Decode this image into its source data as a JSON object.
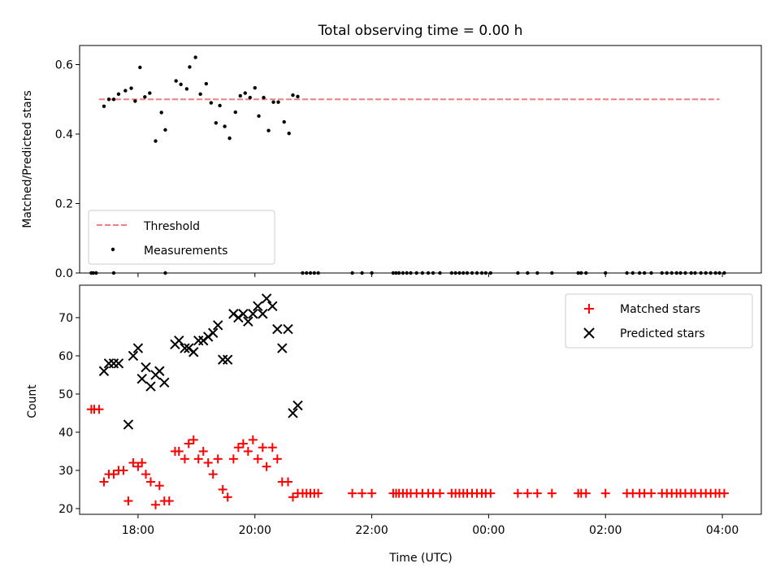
{
  "chart_data": [
    {
      "type": "scatter",
      "title": "Total observing time = 0.00 h",
      "xlabel": "",
      "ylabel": "Matched/Predicted stars",
      "xlim": [
        "17:00",
        "04:40"
      ],
      "ylim": [
        0,
        0.655
      ],
      "yticks": [
        "0.0",
        "0.2",
        "0.4",
        "0.6"
      ],
      "legend_position": "lower-left",
      "threshold": {
        "name": "Threshold",
        "value": 0.5,
        "x_range": [
          "17:20",
          "03:57"
        ],
        "color": "#f08080",
        "style": "dashed"
      },
      "series": [
        {
          "name": "Measurements",
          "color": "#000000",
          "marker": "dot",
          "points": [
            [
              "17:12",
              0.0
            ],
            [
              "17:14",
              0.0
            ],
            [
              "17:17",
              0.0
            ],
            [
              "17:35",
              0.0
            ],
            [
              "18:28",
              0.0
            ],
            [
              "17:25",
              0.48
            ],
            [
              "17:30",
              0.5
            ],
            [
              "17:35",
              0.5
            ],
            [
              "17:40",
              0.515
            ],
            [
              "17:47",
              0.525
            ],
            [
              "17:53",
              0.532
            ],
            [
              "17:57",
              0.495
            ],
            [
              "18:02",
              0.592
            ],
            [
              "18:07",
              0.507
            ],
            [
              "18:12",
              0.518
            ],
            [
              "18:18",
              0.38
            ],
            [
              "18:24",
              0.462
            ],
            [
              "18:28",
              0.412
            ],
            [
              "18:39",
              0.553
            ],
            [
              "18:44",
              0.543
            ],
            [
              "18:50",
              0.53
            ],
            [
              "18:53",
              0.593
            ],
            [
              "18:59",
              0.621
            ],
            [
              "19:04",
              0.515
            ],
            [
              "19:10",
              0.545
            ],
            [
              "19:15",
              0.49
            ],
            [
              "19:20",
              0.432
            ],
            [
              "19:24",
              0.482
            ],
            [
              "19:29",
              0.422
            ],
            [
              "19:34",
              0.388
            ],
            [
              "19:40",
              0.463
            ],
            [
              "19:45",
              0.51
            ],
            [
              "19:50",
              0.518
            ],
            [
              "19:55",
              0.505
            ],
            [
              "20:00",
              0.533
            ],
            [
              "20:04",
              0.452
            ],
            [
              "20:09",
              0.505
            ],
            [
              "20:14",
              0.41
            ],
            [
              "20:19",
              0.492
            ],
            [
              "20:24",
              0.492
            ],
            [
              "20:30",
              0.435
            ],
            [
              "20:35",
              0.402
            ],
            [
              "20:39",
              0.512
            ],
            [
              "20:44",
              0.508
            ],
            [
              "20:49",
              0.0
            ],
            [
              "20:53",
              0.0
            ],
            [
              "20:57",
              0.0
            ],
            [
              "21:01",
              0.0
            ],
            [
              "21:05",
              0.0
            ],
            [
              "21:40",
              0.0
            ],
            [
              "21:50",
              0.0
            ],
            [
              "22:00",
              0.0
            ],
            [
              "22:22",
              0.0
            ],
            [
              "22:25",
              0.0
            ],
            [
              "22:28",
              0.0
            ],
            [
              "22:32",
              0.0
            ],
            [
              "22:36",
              0.0
            ],
            [
              "22:40",
              0.0
            ],
            [
              "22:46",
              0.0
            ],
            [
              "22:52",
              0.0
            ],
            [
              "22:58",
              0.0
            ],
            [
              "23:03",
              0.0
            ],
            [
              "23:10",
              0.0
            ],
            [
              "23:22",
              0.0
            ],
            [
              "23:26",
              0.0
            ],
            [
              "23:30",
              0.0
            ],
            [
              "23:34",
              0.0
            ],
            [
              "23:38",
              0.0
            ],
            [
              "23:43",
              0.0
            ],
            [
              "23:48",
              0.0
            ],
            [
              "23:53",
              0.0
            ],
            [
              "23:57",
              0.0
            ],
            [
              "00:02",
              0.0
            ],
            [
              "00:30",
              0.0
            ],
            [
              "00:40",
              0.0
            ],
            [
              "00:50",
              0.0
            ],
            [
              "01:05",
              0.0
            ],
            [
              "01:32",
              0.0
            ],
            [
              "01:35",
              0.0
            ],
            [
              "01:40",
              0.0
            ],
            [
              "02:00",
              0.0
            ],
            [
              "02:22",
              0.0
            ],
            [
              "02:28",
              0.0
            ],
            [
              "02:35",
              0.0
            ],
            [
              "02:40",
              0.0
            ],
            [
              "02:47",
              0.0
            ],
            [
              "02:58",
              0.0
            ],
            [
              "03:03",
              0.0
            ],
            [
              "03:08",
              0.0
            ],
            [
              "03:13",
              0.0
            ],
            [
              "03:17",
              0.0
            ],
            [
              "03:22",
              0.0
            ],
            [
              "03:28",
              0.0
            ],
            [
              "03:32",
              0.0
            ],
            [
              "03:38",
              0.0
            ],
            [
              "03:43",
              0.0
            ],
            [
              "03:48",
              0.0
            ],
            [
              "03:53",
              0.0
            ],
            [
              "03:57",
              0.0
            ],
            [
              "04:02",
              0.0
            ]
          ]
        }
      ]
    },
    {
      "type": "scatter",
      "title": "",
      "xlabel": "Time (UTC)",
      "ylabel": "Count",
      "xlim": [
        "17:00",
        "04:40"
      ],
      "ylim": [
        18.5,
        78.5
      ],
      "xticks": [
        "18:00",
        "20:00",
        "22:00",
        "00:00",
        "02:00",
        "04:00"
      ],
      "yticks": [
        "20",
        "30",
        "40",
        "50",
        "60",
        "70"
      ],
      "legend_position": "upper-right",
      "series": [
        {
          "name": "Matched stars",
          "color": "#ff0000",
          "marker": "plus",
          "points": [
            [
              "17:12",
              46
            ],
            [
              "17:15",
              46
            ],
            [
              "17:20",
              46
            ],
            [
              "17:25",
              27
            ],
            [
              "17:30",
              29
            ],
            [
              "17:35",
              29
            ],
            [
              "17:40",
              30
            ],
            [
              "17:45",
              30
            ],
            [
              "17:50",
              22
            ],
            [
              "17:55",
              32
            ],
            [
              "18:00",
              31
            ],
            [
              "18:04",
              32
            ],
            [
              "18:08",
              29
            ],
            [
              "18:13",
              27
            ],
            [
              "18:18",
              21
            ],
            [
              "18:22",
              26
            ],
            [
              "18:27",
              22
            ],
            [
              "18:32",
              22
            ],
            [
              "18:38",
              35
            ],
            [
              "18:42",
              35
            ],
            [
              "18:48",
              33
            ],
            [
              "18:52",
              37
            ],
            [
              "18:57",
              38
            ],
            [
              "19:02",
              33
            ],
            [
              "19:07",
              35
            ],
            [
              "19:12",
              32
            ],
            [
              "19:17",
              29
            ],
            [
              "19:22",
              33
            ],
            [
              "19:27",
              25
            ],
            [
              "19:32",
              23
            ],
            [
              "19:38",
              33
            ],
            [
              "19:43",
              36
            ],
            [
              "19:48",
              37
            ],
            [
              "19:53",
              35
            ],
            [
              "19:58",
              38
            ],
            [
              "20:03",
              33
            ],
            [
              "20:08",
              36
            ],
            [
              "20:12",
              31
            ],
            [
              "20:18",
              36
            ],
            [
              "20:23",
              33
            ],
            [
              "20:28",
              27
            ],
            [
              "20:34",
              27
            ],
            [
              "20:39",
              23
            ],
            [
              "20:44",
              24
            ],
            [
              "20:49",
              24
            ],
            [
              "20:53",
              24
            ],
            [
              "20:57",
              24
            ],
            [
              "21:01",
              24
            ],
            [
              "21:05",
              24
            ],
            [
              "21:40",
              24
            ],
            [
              "21:50",
              24
            ],
            [
              "22:00",
              24
            ],
            [
              "22:22",
              24
            ],
            [
              "22:25",
              24
            ],
            [
              "22:28",
              24
            ],
            [
              "22:32",
              24
            ],
            [
              "22:36",
              24
            ],
            [
              "22:40",
              24
            ],
            [
              "22:46",
              24
            ],
            [
              "22:52",
              24
            ],
            [
              "22:58",
              24
            ],
            [
              "23:03",
              24
            ],
            [
              "23:10",
              24
            ],
            [
              "23:22",
              24
            ],
            [
              "23:26",
              24
            ],
            [
              "23:30",
              24
            ],
            [
              "23:34",
              24
            ],
            [
              "23:38",
              24
            ],
            [
              "23:43",
              24
            ],
            [
              "23:48",
              24
            ],
            [
              "23:53",
              24
            ],
            [
              "23:57",
              24
            ],
            [
              "00:02",
              24
            ],
            [
              "00:30",
              24
            ],
            [
              "00:40",
              24
            ],
            [
              "00:50",
              24
            ],
            [
              "01:05",
              24
            ],
            [
              "01:32",
              24
            ],
            [
              "01:35",
              24
            ],
            [
              "01:40",
              24
            ],
            [
              "02:00",
              24
            ],
            [
              "02:22",
              24
            ],
            [
              "02:28",
              24
            ],
            [
              "02:35",
              24
            ],
            [
              "02:40",
              24
            ],
            [
              "02:47",
              24
            ],
            [
              "02:58",
              24
            ],
            [
              "03:03",
              24
            ],
            [
              "03:08",
              24
            ],
            [
              "03:13",
              24
            ],
            [
              "03:17",
              24
            ],
            [
              "03:22",
              24
            ],
            [
              "03:28",
              24
            ],
            [
              "03:32",
              24
            ],
            [
              "03:38",
              24
            ],
            [
              "03:43",
              24
            ],
            [
              "03:48",
              24
            ],
            [
              "03:53",
              24
            ],
            [
              "03:57",
              24
            ],
            [
              "04:02",
              24
            ]
          ]
        },
        {
          "name": "Predicted stars",
          "color": "#000000",
          "marker": "x",
          "points": [
            [
              "17:25",
              56
            ],
            [
              "17:30",
              58
            ],
            [
              "17:35",
              58
            ],
            [
              "17:40",
              58
            ],
            [
              "17:50",
              42
            ],
            [
              "17:55",
              60
            ],
            [
              "18:00",
              62
            ],
            [
              "18:04",
              54
            ],
            [
              "18:08",
              57
            ],
            [
              "18:13",
              52
            ],
            [
              "18:18",
              55
            ],
            [
              "18:22",
              56
            ],
            [
              "18:27",
              53
            ],
            [
              "18:38",
              63
            ],
            [
              "18:42",
              64
            ],
            [
              "18:48",
              62
            ],
            [
              "18:52",
              62
            ],
            [
              "18:57",
              61
            ],
            [
              "19:02",
              64
            ],
            [
              "19:07",
              64
            ],
            [
              "19:12",
              65
            ],
            [
              "19:17",
              66
            ],
            [
              "19:22",
              68
            ],
            [
              "19:27",
              59
            ],
            [
              "19:32",
              59
            ],
            [
              "19:38",
              71
            ],
            [
              "19:43",
              70
            ],
            [
              "19:48",
              71
            ],
            [
              "19:53",
              69
            ],
            [
              "19:58",
              71
            ],
            [
              "20:03",
              73
            ],
            [
              "20:08",
              71
            ],
            [
              "20:12",
              75
            ],
            [
              "20:18",
              73
            ],
            [
              "20:23",
              67
            ],
            [
              "20:28",
              62
            ],
            [
              "20:34",
              67
            ],
            [
              "20:39",
              45
            ],
            [
              "20:44",
              47
            ]
          ]
        }
      ]
    }
  ]
}
